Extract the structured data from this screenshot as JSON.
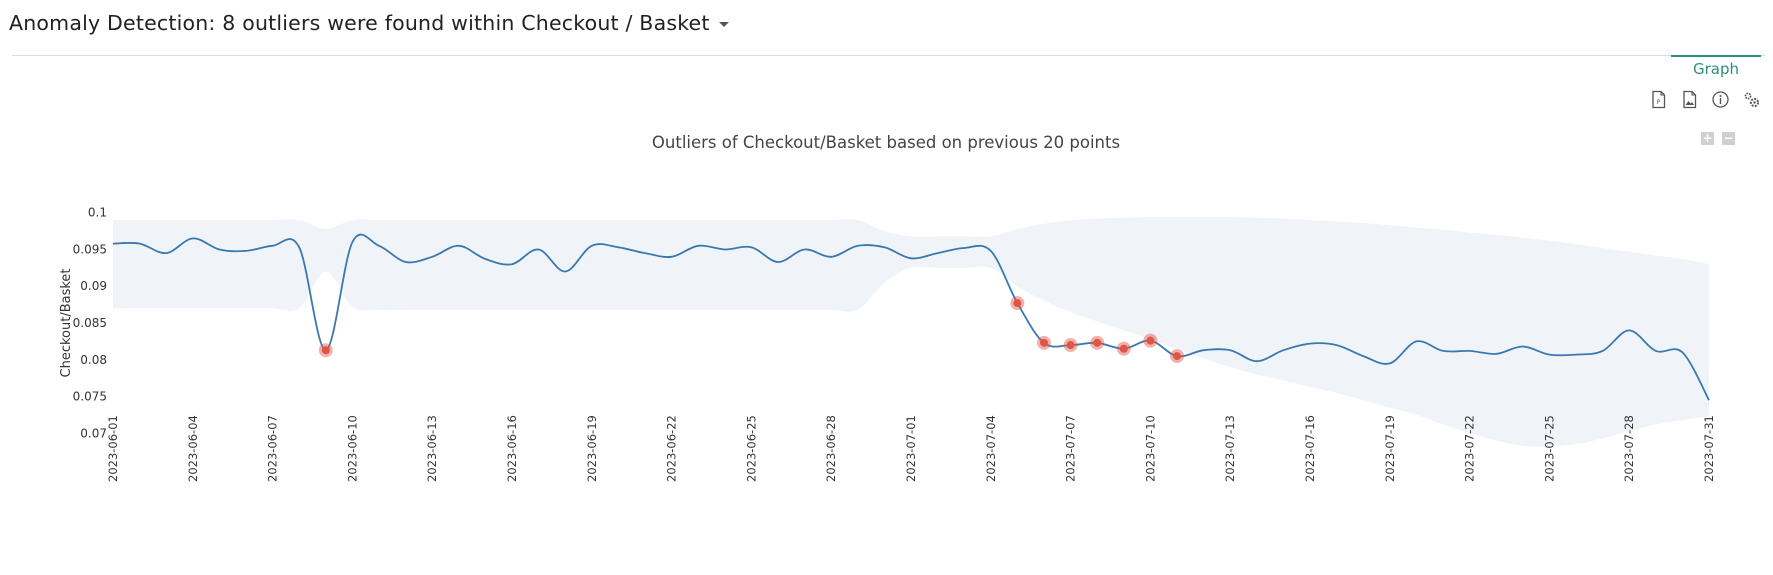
{
  "header": {
    "title": "Anomaly Detection: 8 outliers were found within Checkout / Basket"
  },
  "tabs": [
    {
      "label": "Graph",
      "active": true
    }
  ],
  "toolbar": {
    "icons": [
      "export-pdf-icon",
      "export-image-icon",
      "info-icon",
      "settings-icon"
    ]
  },
  "zoom": {
    "plus": "+",
    "minus": "−"
  },
  "colors": {
    "line": "#3a78b0",
    "band": "#f0f4f8",
    "outlier": "#e05545",
    "accent": "#2a8f7e"
  },
  "chart_data": {
    "type": "line",
    "title": "Outliers of Checkout/Basket based on previous 20 points",
    "ylabel": "Checkout/Basket",
    "xlabel": "",
    "ylim": [
      0.068,
      0.102
    ],
    "yticks": [
      0.07,
      0.075,
      0.08,
      0.085,
      0.09,
      0.095,
      0.1
    ],
    "ytick_labels": [
      "0.07",
      "0.075",
      "0.08",
      "0.085",
      "0.09",
      "0.095",
      "0.1"
    ],
    "grid": false,
    "x": [
      "2023-06-01",
      "2023-06-02",
      "2023-06-03",
      "2023-06-04",
      "2023-06-05",
      "2023-06-06",
      "2023-06-07",
      "2023-06-08",
      "2023-06-09",
      "2023-06-10",
      "2023-06-11",
      "2023-06-12",
      "2023-06-13",
      "2023-06-14",
      "2023-06-15",
      "2023-06-16",
      "2023-06-17",
      "2023-06-18",
      "2023-06-19",
      "2023-06-20",
      "2023-06-21",
      "2023-06-22",
      "2023-06-23",
      "2023-06-24",
      "2023-06-25",
      "2023-06-26",
      "2023-06-27",
      "2023-06-28",
      "2023-06-29",
      "2023-06-30",
      "2023-07-01",
      "2023-07-02",
      "2023-07-03",
      "2023-07-04",
      "2023-07-05",
      "2023-07-06",
      "2023-07-07",
      "2023-07-08",
      "2023-07-09",
      "2023-07-10",
      "2023-07-11",
      "2023-07-12",
      "2023-07-13",
      "2023-07-14",
      "2023-07-15",
      "2023-07-16",
      "2023-07-17",
      "2023-07-18",
      "2023-07-19",
      "2023-07-20",
      "2023-07-21",
      "2023-07-22",
      "2023-07-23",
      "2023-07-24",
      "2023-07-25",
      "2023-07-26",
      "2023-07-27",
      "2023-07-28",
      "2023-07-29",
      "2023-07-30",
      "2023-07-31"
    ],
    "xtick_labels": [
      "2023-06-01",
      "2023-06-04",
      "2023-06-07",
      "2023-06-10",
      "2023-06-13",
      "2023-06-16",
      "2023-06-19",
      "2023-06-22",
      "2023-06-25",
      "2023-06-28",
      "2023-07-01",
      "2023-07-04",
      "2023-07-07",
      "2023-07-10",
      "2023-07-13",
      "2023-07-16",
      "2023-07-19",
      "2023-07-22",
      "2023-07-25",
      "2023-07-28",
      "2023-07-31"
    ],
    "series": [
      {
        "values": [
          0.0958,
          0.0958,
          0.0945,
          0.0965,
          0.095,
          0.0948,
          0.0955,
          0.0953,
          0.0813,
          0.096,
          0.0955,
          0.0933,
          0.094,
          0.0955,
          0.0937,
          0.093,
          0.095,
          0.092,
          0.0955,
          0.0953,
          0.0945,
          0.094,
          0.0955,
          0.095,
          0.0953,
          0.0933,
          0.095,
          0.094,
          0.0955,
          0.0953,
          0.0938,
          0.0945,
          0.0952,
          0.0948,
          0.0877,
          0.0823,
          0.082,
          0.0823,
          0.0815,
          0.0826,
          0.0805,
          0.0813,
          0.0813,
          0.0798,
          0.0813,
          0.0822,
          0.082,
          0.0805,
          0.0795,
          0.0825,
          0.0812,
          0.0812,
          0.0808,
          0.0818,
          0.0807,
          0.0807,
          0.0812,
          0.084,
          0.0812,
          0.081,
          0.0745
        ]
      }
    ],
    "band": {
      "upper": [
        0.099,
        0.099,
        0.099,
        0.099,
        0.099,
        0.099,
        0.099,
        0.099,
        0.0978,
        0.099,
        0.099,
        0.099,
        0.099,
        0.099,
        0.099,
        0.099,
        0.099,
        0.099,
        0.099,
        0.099,
        0.099,
        0.099,
        0.099,
        0.099,
        0.099,
        0.099,
        0.099,
        0.099,
        0.099,
        0.0975,
        0.0968,
        0.0968,
        0.0968,
        0.0968,
        0.0978,
        0.0985,
        0.099,
        0.0992,
        0.0993,
        0.0994,
        0.0994,
        0.0994,
        0.0994,
        0.0993,
        0.0992,
        0.099,
        0.0988,
        0.0986,
        0.0983,
        0.098,
        0.0977,
        0.0973,
        0.097,
        0.0966,
        0.0962,
        0.0957,
        0.0952,
        0.0947,
        0.0942,
        0.0937,
        0.093
      ],
      "lower": [
        0.087,
        0.087,
        0.087,
        0.087,
        0.087,
        0.087,
        0.087,
        0.087,
        0.092,
        0.0872,
        0.0868,
        0.0868,
        0.0868,
        0.0868,
        0.0868,
        0.0868,
        0.0868,
        0.0868,
        0.0868,
        0.0868,
        0.0868,
        0.0868,
        0.0868,
        0.0868,
        0.0868,
        0.0868,
        0.0868,
        0.0868,
        0.0868,
        0.0905,
        0.0925,
        0.0925,
        0.0925,
        0.0925,
        0.09,
        0.088,
        0.0865,
        0.0852,
        0.084,
        0.0828,
        0.0815,
        0.0802,
        0.079,
        0.078,
        0.0772,
        0.0763,
        0.0755,
        0.0745,
        0.0735,
        0.0725,
        0.0712,
        0.07,
        0.069,
        0.0683,
        0.0682,
        0.0685,
        0.0693,
        0.0703,
        0.0712,
        0.0718,
        0.0723
      ]
    },
    "outliers": [
      {
        "x": "2023-06-09",
        "y": 0.0813
      },
      {
        "x": "2023-07-05",
        "y": 0.0877
      },
      {
        "x": "2023-07-06",
        "y": 0.0823
      },
      {
        "x": "2023-07-07",
        "y": 0.082
      },
      {
        "x": "2023-07-08",
        "y": 0.0823
      },
      {
        "x": "2023-07-09",
        "y": 0.0815
      },
      {
        "x": "2023-07-10",
        "y": 0.0826
      },
      {
        "x": "2023-07-11",
        "y": 0.0805
      }
    ]
  }
}
